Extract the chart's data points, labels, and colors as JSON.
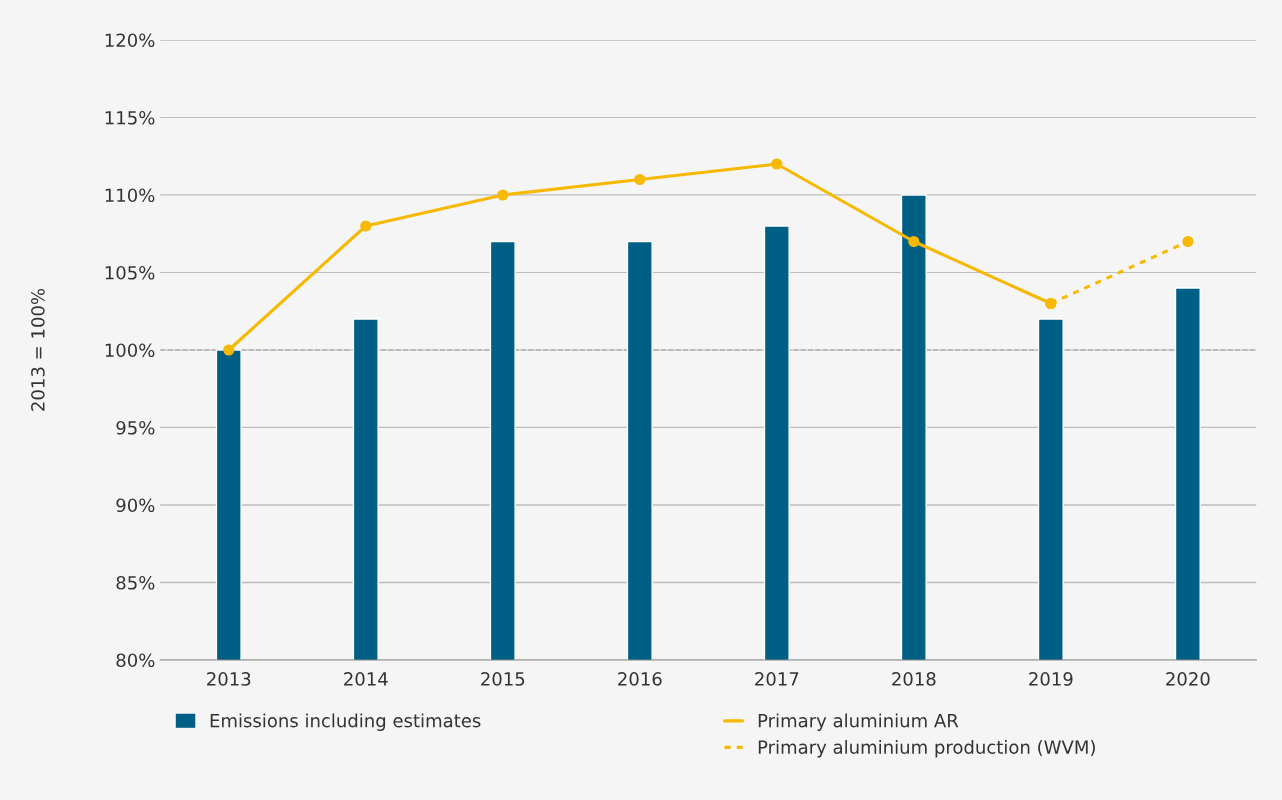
{
  "chart_data": {
    "type": "bar",
    "ylabel": "2013 = 100%",
    "categories": [
      "2013",
      "2014",
      "2015",
      "2016",
      "2017",
      "2018",
      "2019",
      "2020"
    ],
    "series": [
      {
        "name": "Emissions including estimates",
        "color": "#005f85",
        "values": [
          100,
          102,
          107,
          107,
          108,
          110,
          102,
          104
        ]
      },
      {
        "name": "Primary aluminium AR",
        "type": "line",
        "color": "#f7b900",
        "marker": "circle",
        "line_style": "solid",
        "values": [
          100,
          108,
          110,
          111,
          112,
          107,
          103,
          null
        ]
      },
      {
        "name": "Primary aluminium production (WVM)",
        "type": "line",
        "color": "#f7b900",
        "marker": "circle",
        "line_style": "dotted",
        "values": [
          null,
          null,
          null,
          null,
          null,
          null,
          103,
          107
        ]
      }
    ],
    "ylim": [
      80,
      120
    ],
    "yticks": [
      {
        "value": 80,
        "label": "80%"
      },
      {
        "value": 85,
        "label": "85%"
      },
      {
        "value": 90,
        "label": "90%"
      },
      {
        "value": 95,
        "label": "95%"
      },
      {
        "value": 100,
        "label": "100%"
      },
      {
        "value": 105,
        "label": "105%"
      },
      {
        "value": 110,
        "label": "110%"
      },
      {
        "value": 115,
        "label": "115%"
      },
      {
        "value": 120,
        "label": "120%"
      }
    ],
    "ref_lines": [
      {
        "axis": "y",
        "value": 100,
        "color": "#b0b0b0",
        "line_style": "dashed"
      }
    ],
    "grid": "y",
    "legend": "bottom"
  }
}
